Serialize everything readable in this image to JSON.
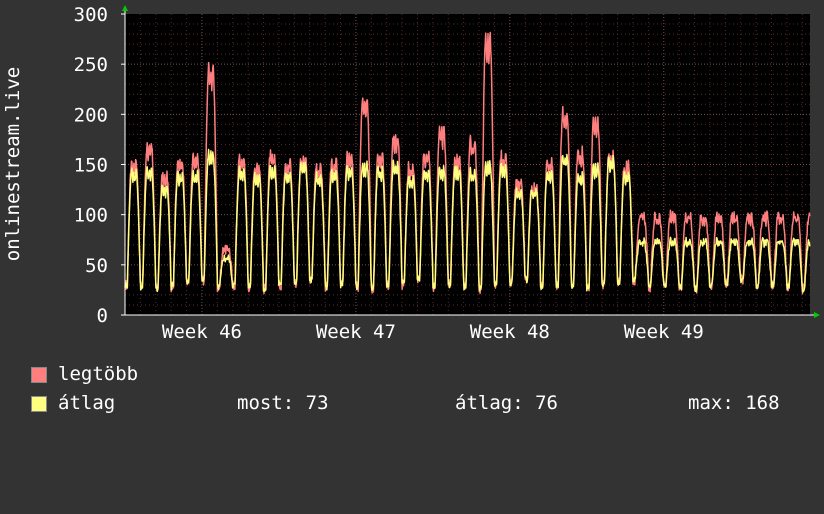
{
  "chart_data": {
    "type": "line",
    "ylabel": "onlinestream.live",
    "xlabel": "",
    "ylim": [
      0,
      300
    ],
    "y_ticks": [
      "0",
      "50",
      "100",
      "150",
      "200",
      "250",
      "300"
    ],
    "x_ticks": [
      "Week 46",
      "Week 47",
      "Week 48",
      "Week 49"
    ],
    "x_range_days": [
      0,
      44.5
    ],
    "x_tick_days": [
      5,
      15,
      25,
      35
    ],
    "grid": true,
    "legend_placement": "bottom-left",
    "series": [
      {
        "name": "legtöbb",
        "color": "#ff7f7f",
        "daily_peaks": [
          155,
          170,
          140,
          155,
          158,
          248,
          68,
          158,
          150,
          160,
          155,
          158,
          150,
          155,
          160,
          220,
          160,
          180,
          150,
          163,
          185,
          158,
          175,
          280,
          160,
          135,
          130,
          155,
          205,
          165,
          195,
          160,
          150,
          100
        ]
      },
      {
        "name": "átlag",
        "color": "#ffff7f",
        "daily_peaks": [
          145,
          148,
          130,
          142,
          143,
          163,
          58,
          147,
          140,
          148,
          143,
          152,
          140,
          143,
          148,
          152,
          147,
          152,
          138,
          145,
          148,
          147,
          145,
          152,
          150,
          125,
          125,
          145,
          160,
          140,
          150,
          157,
          143,
          75
        ]
      }
    ]
  },
  "legend": {
    "items": [
      {
        "label": "legtöbb",
        "color": "#ff7f7f"
      },
      {
        "label": "átlag",
        "color": "#ffff7f"
      }
    ],
    "stats": {
      "most": "most: 73",
      "atlag": "átlag: 76",
      "max": "max: 168"
    }
  },
  "colors": {
    "background": "#333333",
    "plot_background": "#000000",
    "grid_minor": "#5a2a2a",
    "grid_major": "#7a5252",
    "axis": "#ffffff",
    "arrow": "#00cc00"
  }
}
